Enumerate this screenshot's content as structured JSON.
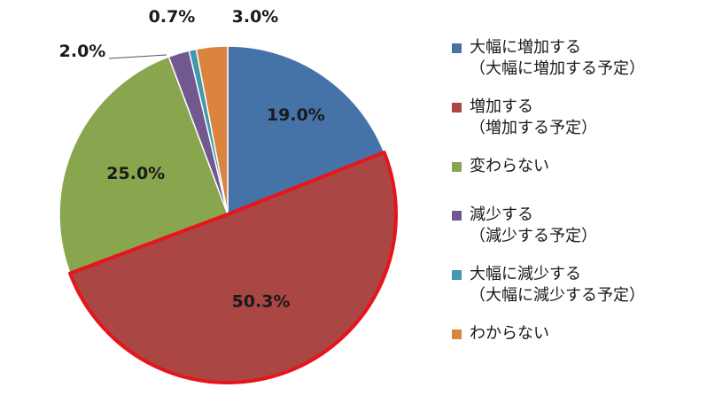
{
  "chart_data": {
    "type": "pie",
    "slices": [
      {
        "name": "大幅に増加する",
        "name_line2": "（大幅に増加する予定）",
        "value": 19.0,
        "label": "19.0%",
        "color": "#4572a7",
        "label_pos": "inside"
      },
      {
        "name": "増加する",
        "name_line2": "（増加する予定）",
        "value": 50.3,
        "label": "50.3%",
        "color": "#aa4643",
        "label_pos": "inside",
        "highlighted": true
      },
      {
        "name": "変わらない",
        "name_line2": "",
        "value": 25.0,
        "label": "25.0%",
        "color": "#89a54e",
        "label_pos": "inside"
      },
      {
        "name": "減少する",
        "name_line2": "（減少する予定）",
        "value": 2.0,
        "label": "2.0%",
        "color": "#71588f",
        "label_pos": "outside"
      },
      {
        "name": "大幅に減少する",
        "name_line2": "（大幅に減少する予定）",
        "value": 0.7,
        "label": "0.7%",
        "color": "#4198af",
        "label_pos": "outside"
      },
      {
        "name": "わからない",
        "name_line2": "",
        "value": 3.0,
        "label": "3.0%",
        "color": "#db843d",
        "label_pos": "outside"
      }
    ],
    "start": "12 o'clock",
    "direction": "clockwise",
    "highlight_color": "#e8141b",
    "legend_position": "right"
  }
}
